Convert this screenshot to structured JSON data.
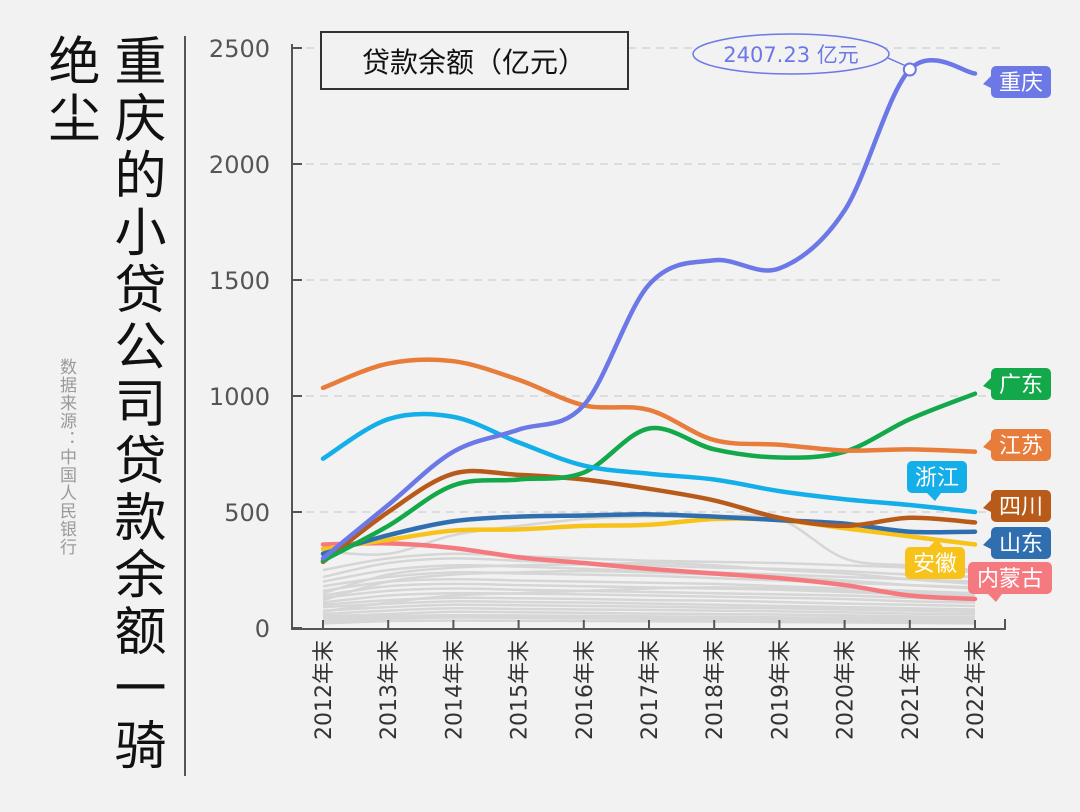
{
  "headline": "重庆的小贷公司贷款余额一骑绝尘",
  "source": "数据来源：中国人民银行",
  "chart_data": {
    "type": "line",
    "title": "贷款余额（亿元）",
    "ylabel": "",
    "xlabel": "",
    "ylim": [
      0,
      2500
    ],
    "yticks": [
      0,
      500,
      1000,
      1500,
      2000,
      2500
    ],
    "grid": "horizontal dashed",
    "categories": [
      "2012年末",
      "2013年末",
      "2014年末",
      "2015年末",
      "2016年末",
      "2017年末",
      "2018年末",
      "2019年末",
      "2020年末",
      "2021年末",
      "2022年末"
    ],
    "annotation": {
      "text": "2407.23 亿元",
      "series": "重庆",
      "category": "2021年末",
      "value": 2407.23
    },
    "series": [
      {
        "name": "重庆",
        "color": "#6b78e6",
        "values": [
          300,
          530,
          760,
          855,
          960,
          1480,
          1585,
          1550,
          1800,
          2407.23,
          2390
        ]
      },
      {
        "name": "江苏",
        "color": "#e87c3a",
        "values": [
          1035,
          1140,
          1150,
          1070,
          960,
          940,
          810,
          790,
          765,
          770,
          760
        ]
      },
      {
        "name": "浙江",
        "color": "#14aee8",
        "values": [
          730,
          900,
          910,
          800,
          700,
          665,
          640,
          590,
          555,
          530,
          500
        ]
      },
      {
        "name": "广东",
        "color": "#13a84a",
        "values": [
          290,
          440,
          615,
          640,
          670,
          860,
          770,
          735,
          760,
          900,
          1010
        ]
      },
      {
        "name": "四川",
        "color": "#b85a1a",
        "values": [
          285,
          500,
          665,
          660,
          640,
          600,
          550,
          475,
          440,
          475,
          455
        ]
      },
      {
        "name": "山东",
        "color": "#2f6fb0",
        "values": [
          320,
          400,
          460,
          480,
          485,
          490,
          480,
          465,
          450,
          415,
          415
        ]
      },
      {
        "name": "安徽",
        "color": "#f7c31a",
        "values": [
          340,
          380,
          420,
          425,
          440,
          445,
          470,
          465,
          430,
          395,
          360
        ]
      },
      {
        "name": "内蒙古",
        "color": "#f47a80",
        "values": [
          360,
          365,
          345,
          305,
          280,
          255,
          235,
          215,
          185,
          140,
          125
        ]
      }
    ],
    "other_series_color": "#d6d6d6",
    "other_series": [
      [
        330,
        320,
        400,
        440,
        470,
        480,
        480,
        470,
        300,
        270,
        250
      ],
      [
        250,
        300,
        320,
        310,
        300,
        290,
        285,
        280,
        270,
        260,
        240
      ],
      [
        220,
        280,
        300,
        290,
        280,
        270,
        260,
        255,
        245,
        230,
        220
      ],
      [
        200,
        250,
        270,
        265,
        255,
        245,
        240,
        230,
        220,
        210,
        200
      ],
      [
        180,
        220,
        240,
        235,
        230,
        225,
        215,
        205,
        195,
        185,
        175
      ],
      [
        160,
        200,
        210,
        205,
        200,
        195,
        190,
        180,
        170,
        160,
        150
      ],
      [
        140,
        180,
        190,
        185,
        180,
        175,
        170,
        165,
        155,
        145,
        140
      ],
      [
        130,
        160,
        170,
        165,
        160,
        155,
        150,
        145,
        140,
        130,
        120
      ],
      [
        110,
        140,
        150,
        148,
        145,
        140,
        135,
        130,
        125,
        115,
        110
      ],
      [
        100,
        120,
        130,
        128,
        125,
        120,
        118,
        112,
        105,
        100,
        95
      ],
      [
        90,
        105,
        115,
        112,
        110,
        105,
        100,
        95,
        90,
        85,
        80
      ],
      [
        75,
        90,
        100,
        98,
        95,
        92,
        88,
        85,
        80,
        75,
        70
      ],
      [
        60,
        75,
        85,
        82,
        80,
        78,
        75,
        72,
        68,
        62,
        60
      ],
      [
        50,
        60,
        70,
        68,
        65,
        62,
        60,
        58,
        55,
        50,
        48
      ],
      [
        40,
        50,
        55,
        54,
        52,
        50,
        48,
        46,
        44,
        40,
        38
      ],
      [
        30,
        40,
        45,
        44,
        42,
        40,
        38,
        36,
        34,
        30,
        28
      ],
      [
        20,
        30,
        32,
        31,
        30,
        29,
        28,
        26,
        24,
        22,
        20
      ],
      [
        150,
        230,
        260,
        270,
        275,
        280,
        270,
        250,
        235,
        210,
        190
      ],
      [
        120,
        200,
        230,
        240,
        245,
        240,
        230,
        220,
        205,
        185,
        170
      ],
      [
        70,
        110,
        140,
        150,
        160,
        170,
        175,
        170,
        160,
        150,
        140
      ]
    ]
  }
}
